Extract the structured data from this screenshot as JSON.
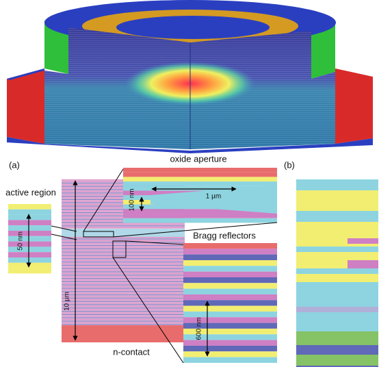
{
  "figure": {
    "panel_labels": [
      "(a)",
      "(b)"
    ],
    "regions": {
      "oxide_aperture": "oxide aperture",
      "active_region": "active region",
      "bragg_reflectors": "Bragg reflectors",
      "n_contact": "n-contact"
    },
    "scale_bars": {
      "aperture_width": "1 µm",
      "aperture_height": "100 nm",
      "active_height": "50 nm",
      "total_height": "10 µm",
      "bragg_height": "600 nm"
    }
  }
}
